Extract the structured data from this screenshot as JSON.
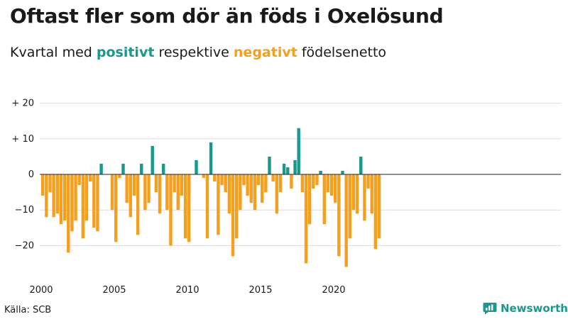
{
  "header": {
    "title": "Oftast fler som dör än föds i Oxelösund",
    "subtitle_prefix": "Kvartal med ",
    "subtitle_positive": "positivt",
    "subtitle_middle": " respektive ",
    "subtitle_negative": "negativt",
    "subtitle_suffix": " födelsenetto"
  },
  "footer": {
    "source": "Källa: SCB",
    "brand": "Newsworthy"
  },
  "colors": {
    "positive": "#17998c",
    "negative": "#f59f1f"
  },
  "chart_data": {
    "type": "bar",
    "title": "Oftast fler som dör än föds i Oxelösund",
    "subtitle": "Kvartal med positivt respektive negativt födelsenetto",
    "xlabel": "",
    "ylabel": "",
    "ylim": [
      -28,
      22
    ],
    "y_ticks": [
      {
        "value": 20,
        "label": "+ 20"
      },
      {
        "value": 10,
        "label": "+ 10"
      },
      {
        "value": 0,
        "label": "0"
      },
      {
        "value": -10,
        "label": "−10"
      },
      {
        "value": -20,
        "label": "−20"
      }
    ],
    "x_tick_labels": [
      "2000",
      "2005",
      "2010",
      "2015",
      "2020"
    ],
    "start_year": 2000,
    "periods_per_year": 4,
    "values": [
      -6,
      -12,
      -5,
      -12,
      -11,
      -14,
      -13,
      -22,
      -16,
      -13,
      -3,
      -18,
      -13,
      -2,
      -15,
      -16,
      3,
      0,
      0,
      -10,
      -19,
      -1,
      3,
      -8,
      -12,
      -6,
      -17,
      3,
      -10,
      -8,
      8,
      -5,
      -11,
      3,
      -10,
      -20,
      -5,
      -10,
      -6,
      -18,
      -19,
      0,
      4,
      0,
      -1,
      -18,
      9,
      -2,
      -17,
      -3,
      -5,
      -11,
      -23,
      -18,
      -10,
      -3,
      -6,
      -8,
      -10,
      -3,
      -8,
      -5,
      5,
      -2,
      -11,
      -5,
      3,
      2,
      -4,
      4,
      13,
      -5,
      -25,
      -14,
      -4,
      -3,
      1,
      -14,
      -5,
      -6,
      -8,
      -23,
      1,
      -26,
      -18,
      -10,
      -11,
      5,
      -13,
      -4,
      -11,
      -21,
      -18
    ]
  }
}
